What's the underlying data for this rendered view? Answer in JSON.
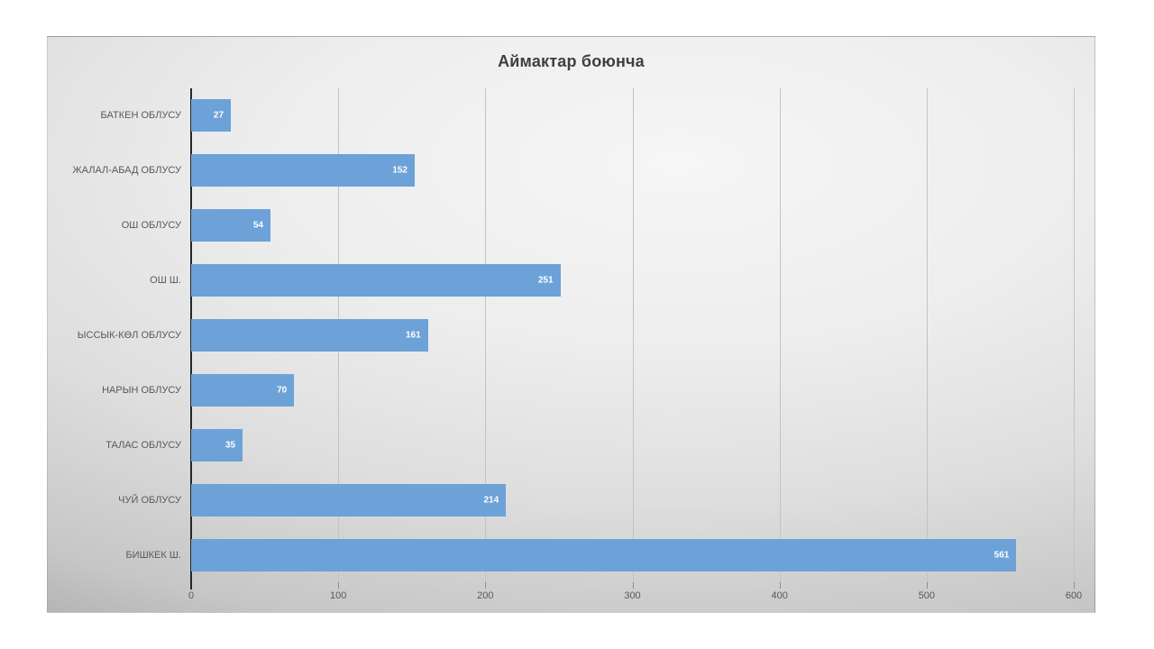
{
  "chart_data": {
    "type": "bar",
    "orientation": "horizontal",
    "title": "Аймактар боюнча",
    "categories": [
      "БАТКЕН ОБЛУСУ",
      "ЖАЛАЛ-АБАД ОБЛУСУ",
      "ОШ ОБЛУСУ",
      "ОШ Ш.",
      "ЫССЫК-КӨЛ ОБЛУСУ",
      "НАРЫН ОБЛУСУ",
      "ТАЛАС ОБЛУСУ",
      "ЧУЙ ОБЛУСУ",
      "БИШКЕК Ш."
    ],
    "values": [
      27,
      152,
      54,
      251,
      161,
      70,
      35,
      214,
      561
    ],
    "value_labels": [
      "27",
      "152",
      "54",
      "251",
      "161",
      "70",
      "35",
      "214",
      "561"
    ],
    "xlim": [
      0,
      600
    ],
    "x_ticks": [
      "0",
      "100",
      "200",
      "300",
      "400",
      "500",
      "600"
    ],
    "grid": true,
    "legend": "none",
    "colors": {
      "bar": "#6CA2D8",
      "value_label": "#FFFFFF",
      "title": "#3F3F3F",
      "axis_text": "#595959",
      "gridline": "#C3C3C3",
      "axis_line": "#262626"
    }
  }
}
